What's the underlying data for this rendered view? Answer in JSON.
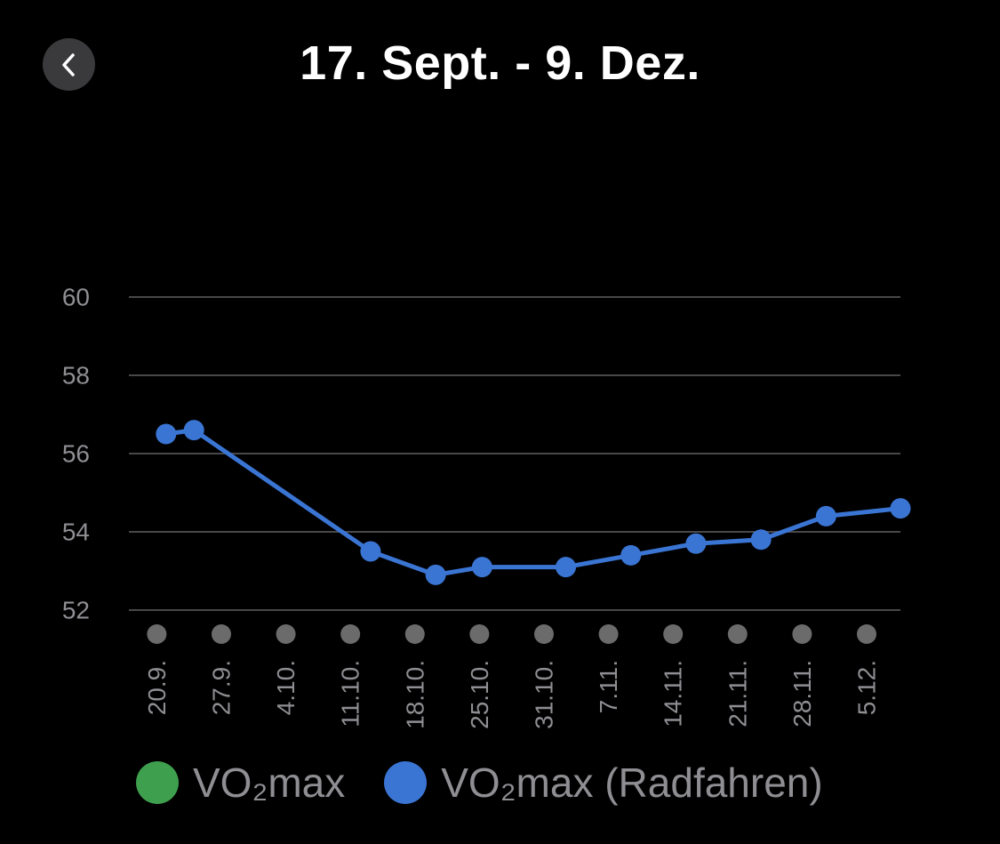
{
  "header": {
    "title": "17. Sept. - 9. Dez.",
    "back_icon": "chevron-left-icon"
  },
  "colors": {
    "background": "#000000",
    "series_vo2max": "#3e9f4e",
    "series_cycling": "#3a75d4",
    "grid": "#48484a",
    "axis_text": "#8e8e93",
    "marker": "#6b6b6b",
    "back_button_bg": "#3a3a3c"
  },
  "chart_data": {
    "type": "line",
    "y_ticks": [
      60,
      58,
      56,
      54,
      52
    ],
    "ylim": [
      52,
      60
    ],
    "grid": true,
    "x_tick_labels": [
      "20.9.",
      "27.9.",
      "4.10.",
      "11.10.",
      "18.10.",
      "25.10.",
      "31.10.",
      "7.11.",
      "14.11.",
      "21.11.",
      "28.11.",
      "5.12."
    ],
    "x_range": [
      "2023-09-17",
      "2023-12-09"
    ],
    "series": [
      {
        "name": "VO₂max",
        "color": "#3e9f4e",
        "points": []
      },
      {
        "name": "VO₂max (Radfahren)",
        "color": "#3a75d4",
        "points": [
          {
            "x": "2023-09-21",
            "y": 56.5
          },
          {
            "x": "2023-09-24",
            "y": 56.6
          },
          {
            "x": "2023-10-13",
            "y": 53.5
          },
          {
            "x": "2023-10-20",
            "y": 52.9
          },
          {
            "x": "2023-10-25",
            "y": 53.1
          },
          {
            "x": "2023-11-03",
            "y": 53.1
          },
          {
            "x": "2023-11-10",
            "y": 53.4
          },
          {
            "x": "2023-11-17",
            "y": 53.7
          },
          {
            "x": "2023-11-24",
            "y": 53.8
          },
          {
            "x": "2023-12-01",
            "y": 54.4
          },
          {
            "x": "2023-12-09",
            "y": 54.6
          }
        ]
      }
    ],
    "legend_position": "bottom"
  }
}
